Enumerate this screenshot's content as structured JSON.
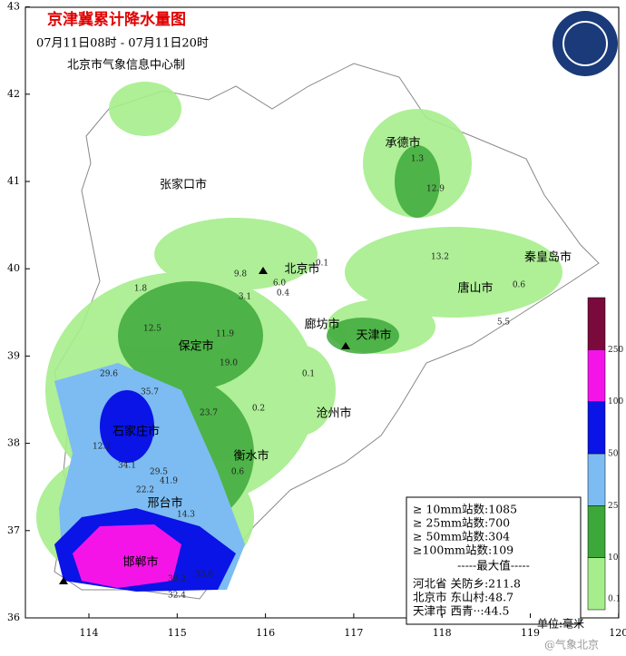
{
  "title": "京津冀累计降水量图",
  "subtitle": "07月11日08时 - 07月11日20时",
  "producer": "北京市气象信息中心制",
  "lat_ticks": [
    36,
    37,
    38,
    39,
    40,
    41,
    42,
    43
  ],
  "lon_ticks": [
    114,
    115,
    116,
    117,
    118,
    119,
    120
  ],
  "cities": [
    "承德市",
    "张家口市",
    "北京市",
    "秦皇岛市",
    "唐山市",
    "廊坊市",
    "天津市",
    "保定市",
    "沧州市",
    "石家庄市",
    "衡水市",
    "邢台市",
    "邯郸市"
  ],
  "stations": [
    "1.3",
    "12.9",
    "13.2",
    "0.6",
    "5.5",
    "1.8",
    "12.5",
    "11.9",
    "3.1",
    "9.8",
    "6.0",
    "0.4",
    "0.1",
    "29.6",
    "35.7",
    "12.2",
    "34.1",
    "29.5",
    "22.2",
    "41.9",
    "14.3",
    "33.8",
    "39.2",
    "32.4",
    "19.0",
    "23.7",
    "0.6",
    "0.2",
    "0.1"
  ],
  "stats": [
    "≥ 10mm站数:1085",
    "≥ 25mm站数:700",
    "≥ 50mm站数:304",
    "≥100mm站数:109"
  ],
  "max_title": "-----最大值-----",
  "max_rows": [
    "河北省 关防乡:211.8",
    "北京市 东山村:48.7",
    "天津市 西青··:44.5"
  ],
  "legend": {
    "levels": [
      0.1,
      10,
      25,
      50,
      100,
      250
    ],
    "colors": [
      "#a6ee8c",
      "#3da83a",
      "#7cbcf2",
      "#0a14e6",
      "#f514e8",
      "#7a0a3c"
    ],
    "unit": "单位:毫米"
  },
  "watermark": "@气象北京"
}
